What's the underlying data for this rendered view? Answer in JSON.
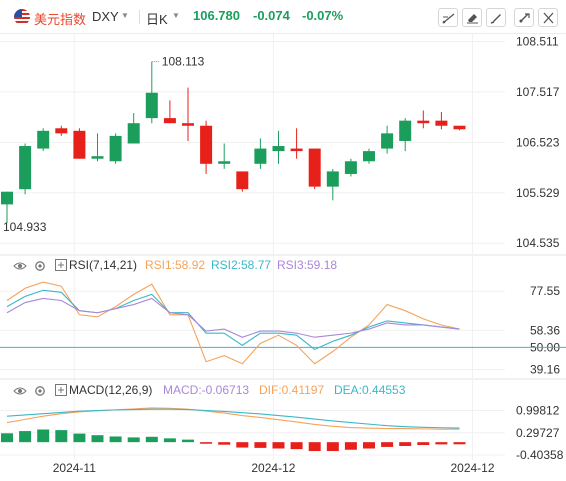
{
  "header": {
    "symbol_name": "美元指数",
    "symbol_code": "DXY",
    "period": "日K",
    "price": "106.780",
    "change": "-0.074",
    "change_pct": "-0.07%"
  },
  "toolbar": {
    "icons": [
      "draw-line-icon",
      "eraser-icon",
      "brush-icon",
      "magnet-icon",
      "close-icon"
    ]
  },
  "colors": {
    "up": "#1b9e5c",
    "down": "#e8201a",
    "rsi1": "#f5a35c",
    "rsi2": "#3bb7c9",
    "rsi3": "#a987d9",
    "macd_label": "#a987d9",
    "dif": "#f5a35c",
    "dea": "#3bb7c9",
    "rsi50_line": "#3fb4c7"
  },
  "rsi_legend": {
    "name": "RSI(7,14,21)",
    "rsi1": "RSI1:58.92",
    "rsi2": "RSI2:58.77",
    "rsi3": "RSI3:59.18"
  },
  "macd_legend": {
    "name": "MACD(12,26,9)",
    "macd": "MACD:-0.06713",
    "dif": "DIF:0.41197",
    "dea": "DEA:0.44553"
  },
  "chart_data": [
    {
      "type": "candlestick",
      "y_ticks": [
        "108.511",
        "107.517",
        "106.523",
        "105.529",
        "104.535"
      ],
      "y_tick_values": [
        108.511,
        107.517,
        106.523,
        105.529,
        104.535
      ],
      "ylim": [
        104.5,
        108.5
      ],
      "annotations": {
        "max": "108.113",
        "min": "104.933"
      },
      "x_ticks": [
        "2024-11",
        "2024-12",
        "2024-12"
      ],
      "candles": [
        {
          "o": 105.3,
          "h": 105.55,
          "l": 104.933,
          "c": 105.55
        },
        {
          "o": 105.6,
          "h": 106.5,
          "l": 105.5,
          "c": 106.45
        },
        {
          "o": 106.4,
          "h": 106.8,
          "l": 106.35,
          "c": 106.75
        },
        {
          "o": 106.8,
          "h": 106.85,
          "l": 106.65,
          "c": 106.7
        },
        {
          "o": 106.75,
          "h": 106.8,
          "l": 106.2,
          "c": 106.2
        },
        {
          "o": 106.2,
          "h": 106.7,
          "l": 106.15,
          "c": 106.25
        },
        {
          "o": 106.15,
          "h": 106.7,
          "l": 106.1,
          "c": 106.65
        },
        {
          "o": 106.5,
          "h": 107.1,
          "l": 106.5,
          "c": 106.9
        },
        {
          "o": 107.0,
          "h": 108.113,
          "l": 106.9,
          "c": 107.5
        },
        {
          "o": 107.0,
          "h": 107.35,
          "l": 106.9,
          "c": 106.9
        },
        {
          "o": 106.9,
          "h": 107.6,
          "l": 106.55,
          "c": 106.85
        },
        {
          "o": 106.85,
          "h": 106.95,
          "l": 105.9,
          "c": 106.1
        },
        {
          "o": 106.1,
          "h": 106.5,
          "l": 106.0,
          "c": 106.15
        },
        {
          "o": 105.95,
          "h": 105.95,
          "l": 105.55,
          "c": 105.6
        },
        {
          "o": 106.1,
          "h": 106.6,
          "l": 106.0,
          "c": 106.4
        },
        {
          "o": 106.35,
          "h": 106.75,
          "l": 106.1,
          "c": 106.45
        },
        {
          "o": 106.4,
          "h": 106.8,
          "l": 106.2,
          "c": 106.35
        },
        {
          "o": 106.4,
          "h": 106.4,
          "l": 105.6,
          "c": 105.65
        },
        {
          "o": 105.65,
          "h": 106.0,
          "l": 105.38,
          "c": 105.95
        },
        {
          "o": 105.9,
          "h": 106.2,
          "l": 105.85,
          "c": 106.15
        },
        {
          "o": 106.15,
          "h": 106.4,
          "l": 106.1,
          "c": 106.35
        },
        {
          "o": 106.4,
          "h": 106.85,
          "l": 106.3,
          "c": 106.7
        },
        {
          "o": 106.55,
          "h": 107.0,
          "l": 106.35,
          "c": 106.95
        },
        {
          "o": 106.95,
          "h": 107.15,
          "l": 106.8,
          "c": 106.9
        },
        {
          "o": 106.95,
          "h": 107.12,
          "l": 106.78,
          "c": 106.85
        },
        {
          "o": 106.85,
          "h": 106.85,
          "l": 106.76,
          "c": 106.78
        }
      ]
    },
    {
      "type": "line",
      "name": "RSI",
      "y_ticks": [
        "77.55",
        "58.36",
        "50.00",
        "39.16"
      ],
      "y_tick_values": [
        77.55,
        58.36,
        50.0,
        39.16
      ],
      "ylim": [
        36,
        85
      ],
      "reference_line": 50,
      "series": [
        {
          "name": "RSI1",
          "values": [
            73,
            79,
            82,
            80,
            66,
            65,
            70,
            76,
            81,
            66,
            66,
            43,
            46,
            42,
            52,
            56,
            51,
            42,
            48,
            55,
            61,
            71,
            68,
            64,
            61,
            59
          ]
        },
        {
          "name": "RSI2",
          "values": [
            70,
            75,
            78,
            77,
            68,
            67,
            69,
            73,
            76,
            67,
            67,
            57,
            57,
            51,
            57,
            57,
            56,
            49,
            53,
            56,
            60,
            63,
            62,
            61,
            60,
            59
          ]
        },
        {
          "name": "RSI3",
          "values": [
            67,
            72,
            74,
            73,
            68,
            67,
            69,
            71,
            74,
            67,
            66,
            58,
            59,
            55,
            58,
            58,
            57,
            55,
            56,
            57,
            59,
            62,
            61,
            61,
            60,
            59
          ]
        }
      ]
    },
    {
      "type": "bar+line",
      "name": "MACD",
      "y_ticks": [
        "0.99812",
        "0.29727",
        "-0.40358"
      ],
      "y_tick_values": [
        0.99812,
        0.29727,
        -0.40358
      ],
      "ylim": [
        -0.5,
        1.3
      ],
      "series": [
        {
          "name": "MACD",
          "values": [
            0.28,
            0.35,
            0.4,
            0.38,
            0.27,
            0.22,
            0.18,
            0.15,
            0.17,
            0.12,
            0.08,
            -0.05,
            -0.08,
            -0.17,
            -0.18,
            -0.2,
            -0.22,
            -0.28,
            -0.28,
            -0.24,
            -0.2,
            -0.15,
            -0.12,
            -0.09,
            -0.07,
            -0.067
          ]
        },
        {
          "name": "DIF",
          "values": [
            0.62,
            0.72,
            0.82,
            0.9,
            0.96,
            0.99,
            1.02,
            1.05,
            1.08,
            1.07,
            1.04,
            0.98,
            0.92,
            0.84,
            0.78,
            0.71,
            0.64,
            0.56,
            0.5,
            0.46,
            0.44,
            0.43,
            0.43,
            0.42,
            0.41,
            0.412
          ]
        },
        {
          "name": "DEA",
          "values": [
            0.82,
            0.86,
            0.9,
            0.94,
            0.98,
            1.0,
            1.02,
            1.03,
            1.04,
            1.04,
            1.03,
            1.0,
            0.97,
            0.93,
            0.89,
            0.84,
            0.79,
            0.73,
            0.67,
            0.62,
            0.57,
            0.52,
            0.49,
            0.47,
            0.455,
            0.446
          ]
        }
      ]
    }
  ]
}
